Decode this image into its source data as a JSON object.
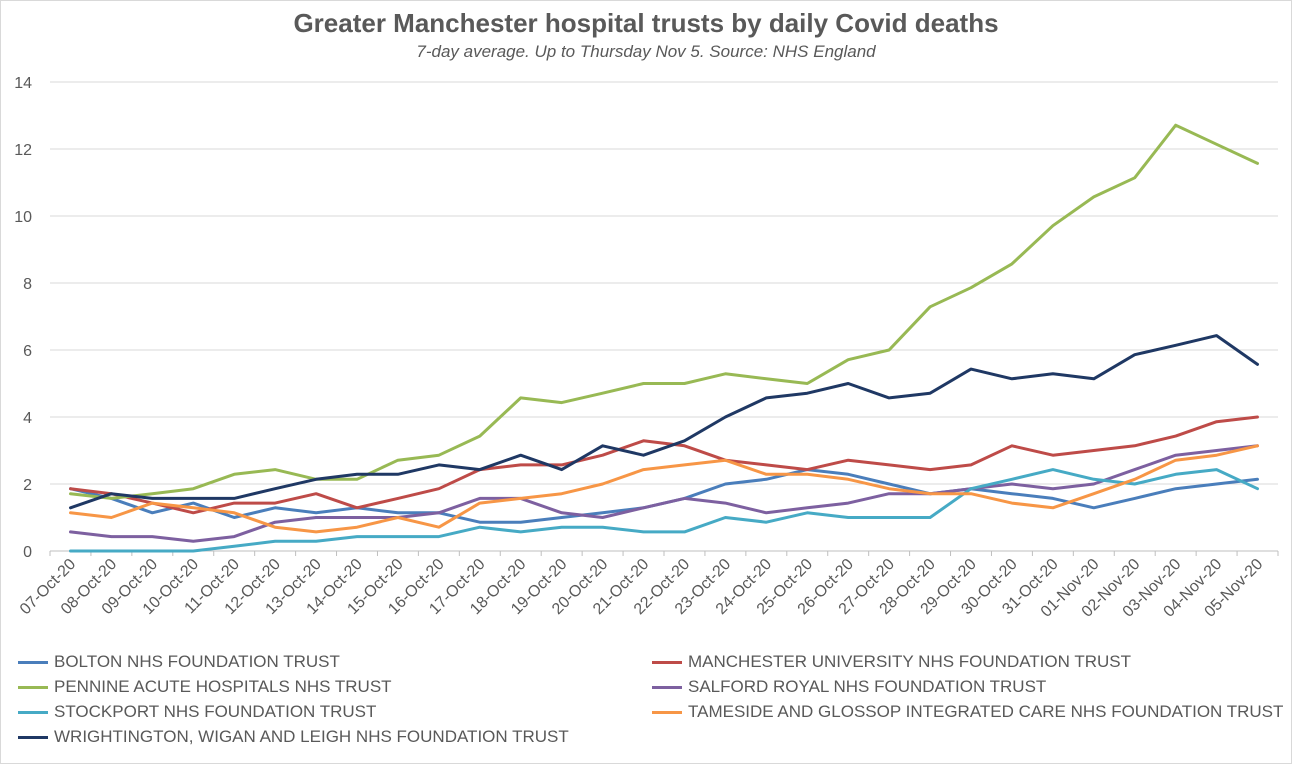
{
  "chart_data": {
    "type": "line",
    "title": "Greater Manchester hospital trusts by daily Covid deaths",
    "subtitle": "7-day average. Up to Thursday Nov 5. Source: NHS England",
    "xlabel": "",
    "ylabel": "",
    "ylim": [
      0,
      14
    ],
    "yticks": [
      "0",
      "2",
      "4",
      "6",
      "8",
      "10",
      "12",
      "14"
    ],
    "grid": "horizontal",
    "legend_position": "bottom",
    "categories": [
      "07-Oct-20",
      "08-Oct-20",
      "09-Oct-20",
      "10-Oct-20",
      "11-Oct-20",
      "12-Oct-20",
      "13-Oct-20",
      "14-Oct-20",
      "15-Oct-20",
      "16-Oct-20",
      "17-Oct-20",
      "18-Oct-20",
      "19-Oct-20",
      "20-Oct-20",
      "21-Oct-20",
      "22-Oct-20",
      "23-Oct-20",
      "24-Oct-20",
      "25-Oct-20",
      "26-Oct-20",
      "27-Oct-20",
      "28-Oct-20",
      "29-Oct-20",
      "30-Oct-20",
      "31-Oct-20",
      "01-Nov-20",
      "02-Nov-20",
      "03-Nov-20",
      "04-Nov-20",
      "05-Nov-20"
    ],
    "series": [
      {
        "name": "BOLTON NHS FOUNDATION TRUST",
        "color": "#4a7ebb",
        "values": [
          1.86,
          1.57,
          1.14,
          1.43,
          1.0,
          1.29,
          1.14,
          1.29,
          1.14,
          1.14,
          0.86,
          0.86,
          1.0,
          1.14,
          1.29,
          1.57,
          2.0,
          2.14,
          2.43,
          2.29,
          2.0,
          1.71,
          1.86,
          1.71,
          1.57,
          1.29,
          1.57,
          1.86,
          2.0,
          2.14
        ]
      },
      {
        "name": "MANCHESTER UNIVERSITY NHS FOUNDATION TRUST",
        "color": "#be4b48",
        "values": [
          1.86,
          1.71,
          1.43,
          1.14,
          1.43,
          1.43,
          1.71,
          1.29,
          1.57,
          1.86,
          2.43,
          2.57,
          2.57,
          2.86,
          3.29,
          3.14,
          2.71,
          2.57,
          2.43,
          2.71,
          2.57,
          2.43,
          2.57,
          3.14,
          2.86,
          3.0,
          3.14,
          3.43,
          3.86,
          4.0
        ]
      },
      {
        "name": "PENNINE ACUTE HOSPITALS NHS TRUST",
        "color": "#98b954",
        "values": [
          1.71,
          1.57,
          1.71,
          1.86,
          2.29,
          2.43,
          2.14,
          2.14,
          2.71,
          2.86,
          3.43,
          4.57,
          4.43,
          4.71,
          5.0,
          5.0,
          5.29,
          5.14,
          5.0,
          5.71,
          6.0,
          7.29,
          7.86,
          8.57,
          9.71,
          10.57,
          11.14,
          12.71,
          12.14,
          11.57
        ]
      },
      {
        "name": "SALFORD ROYAL NHS FOUNDATION TRUST",
        "color": "#7d60a0",
        "values": [
          0.57,
          0.43,
          0.43,
          0.29,
          0.43,
          0.86,
          1.0,
          1.0,
          1.0,
          1.14,
          1.57,
          1.57,
          1.14,
          1.0,
          1.29,
          1.57,
          1.43,
          1.14,
          1.29,
          1.43,
          1.71,
          1.71,
          1.86,
          2.0,
          1.86,
          2.0,
          2.43,
          2.86,
          3.0,
          3.14
        ]
      },
      {
        "name": "STOCKPORT NHS FOUNDATION TRUST",
        "color": "#46aac5",
        "values": [
          0,
          0,
          0,
          0,
          0.14,
          0.29,
          0.29,
          0.43,
          0.43,
          0.43,
          0.71,
          0.57,
          0.71,
          0.71,
          0.57,
          0.57,
          1.0,
          0.86,
          1.14,
          1.0,
          1.0,
          1.0,
          1.86,
          2.14,
          2.43,
          2.14,
          2.0,
          2.29,
          2.43,
          1.86
        ]
      },
      {
        "name": "TAMESIDE AND GLOSSOP INTEGRATED CARE NHS FOUNDATION TRUST",
        "color": "#f79646",
        "values": [
          1.14,
          1.0,
          1.43,
          1.29,
          1.14,
          0.71,
          0.57,
          0.71,
          1.0,
          0.71,
          1.43,
          1.57,
          1.71,
          2.0,
          2.43,
          2.57,
          2.71,
          2.29,
          2.29,
          2.14,
          1.86,
          1.71,
          1.71,
          1.43,
          1.29,
          1.71,
          2.14,
          2.71,
          2.86,
          3.14
        ]
      },
      {
        "name": "WRIGHTINGTON, WIGAN AND LEIGH NHS FOUNDATION TRUST",
        "color": "#1f3864",
        "values": [
          1.29,
          1.71,
          1.57,
          1.57,
          1.57,
          1.86,
          2.14,
          2.29,
          2.29,
          2.57,
          2.43,
          2.86,
          2.43,
          3.14,
          2.86,
          3.29,
          4.0,
          4.57,
          4.71,
          5.0,
          4.57,
          4.71,
          5.43,
          5.14,
          5.29,
          5.14,
          5.86,
          6.14,
          6.43,
          5.57
        ]
      }
    ]
  }
}
